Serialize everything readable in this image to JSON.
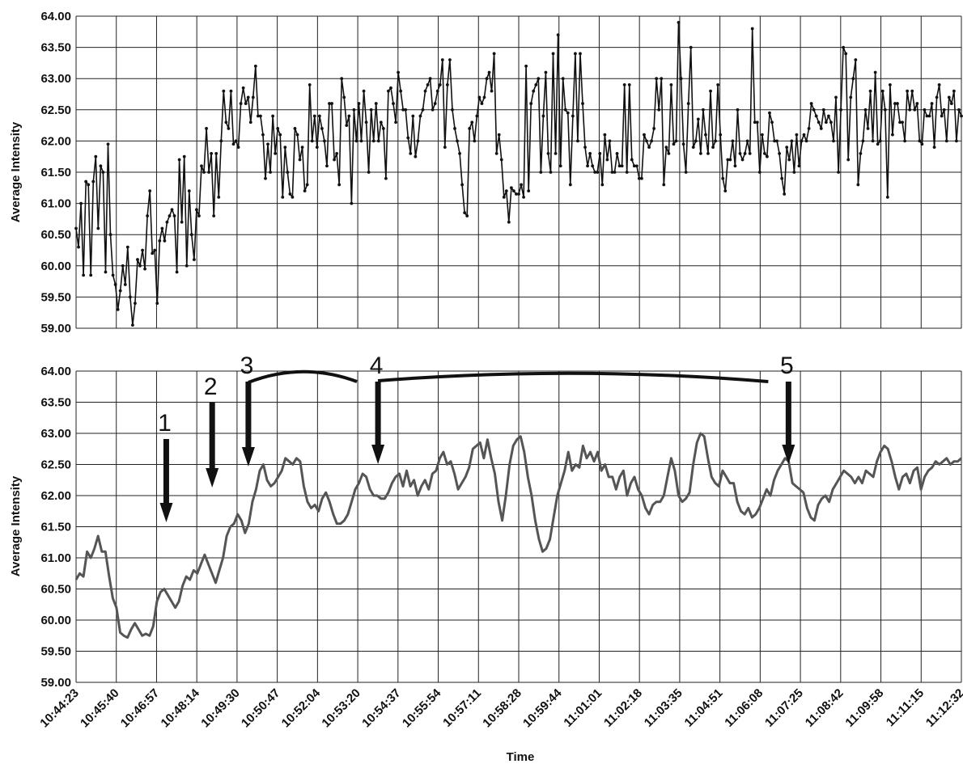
{
  "chart_data": [
    {
      "type": "line",
      "ylabel": "Average Intensity",
      "xlabel": "",
      "ylim": [
        59.0,
        64.0
      ],
      "y_ticks": [
        "59.00",
        "59.50",
        "60.00",
        "60.50",
        "61.00",
        "61.50",
        "62.00",
        "62.50",
        "63.00",
        "63.50",
        "64.00"
      ],
      "x_ticks": [
        "10:44:23",
        "10:45:40",
        "10:46:57",
        "10:48:14",
        "10:49:30",
        "10:50:47",
        "10:52:04",
        "10:53:20",
        "10:54:37",
        "10:55:54",
        "10:57:11",
        "10:58:28",
        "10:59:44",
        "11:01:01",
        "11:02:18",
        "11:03:35",
        "11:04:51",
        "11:06:08",
        "11:07:25",
        "11:08:42",
        "11:09:58",
        "11:11:15",
        "11:12:32"
      ],
      "x_tick_labels_shown": false,
      "grid": true,
      "series": [
        {
          "style": "black line with dot markers",
          "color": "#111111",
          "values": [
            60.6,
            60.3,
            61.0,
            59.85,
            61.35,
            61.3,
            59.85,
            61.35,
            61.75,
            60.6,
            61.6,
            61.5,
            59.9,
            61.95,
            60.5,
            59.85,
            59.7,
            59.3,
            59.6,
            60.0,
            59.7,
            60.3,
            59.5,
            59.05,
            59.4,
            60.1,
            60.0,
            60.25,
            59.95,
            60.8,
            61.2,
            60.2,
            60.25,
            59.4,
            60.4,
            60.6,
            60.4,
            60.7,
            60.8,
            60.9,
            60.8,
            59.9,
            61.7,
            60.7,
            61.75,
            60.0,
            61.2,
            60.5,
            60.1,
            60.9,
            60.8,
            61.6,
            61.5,
            62.2,
            61.5,
            61.8,
            60.8,
            61.8,
            61.1,
            62.0,
            62.8,
            62.3,
            62.2,
            62.8,
            61.95,
            62.0,
            61.9,
            62.6,
            62.85,
            62.6,
            62.7,
            62.3,
            62.7,
            63.2,
            62.4,
            62.4,
            62.1,
            61.4,
            61.95,
            61.5,
            62.4,
            61.8,
            62.2,
            62.1,
            61.1,
            61.9,
            61.5,
            61.15,
            61.1,
            62.2,
            62.1,
            61.7,
            61.9,
            61.2,
            61.3,
            62.9,
            62.0,
            62.4,
            61.9,
            62.4,
            62.2,
            62.0,
            61.6,
            62.6,
            62.6,
            61.7,
            61.8,
            61.3,
            63.0,
            62.7,
            62.25,
            62.4,
            61.0,
            62.5,
            62.0,
            62.6,
            62.0,
            62.8,
            62.3,
            61.5,
            62.5,
            62.0,
            62.6,
            62.0,
            62.3,
            62.2,
            61.4,
            62.8,
            62.85,
            62.6,
            62.3,
            63.1,
            62.8,
            62.5,
            62.5,
            62.05,
            61.8,
            62.4,
            61.75,
            62.0,
            62.4,
            62.5,
            62.8,
            62.9,
            63.0,
            62.5,
            62.6,
            62.8,
            62.9,
            63.3,
            61.9,
            62.9,
            63.3,
            62.5,
            62.2,
            62.0,
            61.8,
            61.3,
            60.85,
            60.8,
            62.2,
            62.3,
            62.0,
            62.4,
            62.7,
            62.6,
            62.7,
            63.0,
            63.1,
            62.8,
            63.4,
            61.8,
            62.1,
            61.7,
            61.1,
            61.2,
            60.7,
            61.25,
            61.2,
            61.15,
            61.15,
            61.3,
            61.1,
            63.2,
            61.2,
            62.6,
            62.8,
            62.9,
            63.0,
            61.5,
            62.4,
            63.1,
            61.8,
            61.5,
            63.4,
            61.8,
            63.7,
            61.6,
            63.0,
            62.5,
            62.45,
            61.3,
            62.4,
            63.4,
            62.0,
            63.4,
            62.6,
            61.9,
            61.6,
            61.8,
            61.6,
            61.5,
            61.5,
            61.8,
            61.3,
            62.1,
            61.7,
            62.0,
            61.5,
            61.5,
            61.8,
            61.6,
            61.6,
            62.9,
            61.5,
            62.9,
            61.7,
            61.6,
            61.6,
            61.4,
            61.4,
            62.1,
            62.0,
            61.9,
            62.0,
            62.2,
            63.0,
            62.5,
            63.0,
            61.3,
            61.9,
            61.8,
            62.9,
            61.95,
            62.0,
            63.9,
            63.0,
            61.95,
            61.5,
            62.6,
            63.5,
            61.9,
            62.0,
            62.35,
            61.8,
            62.5,
            62.1,
            61.8,
            62.8,
            61.9,
            62.0,
            62.9,
            62.1,
            61.4,
            61.2,
            61.7,
            61.7,
            62.0,
            61.6,
            62.5,
            61.8,
            61.7,
            61.8,
            62.0,
            61.8,
            63.8,
            62.3,
            62.3,
            61.5,
            62.1,
            61.8,
            61.75,
            62.45,
            62.3,
            62.0,
            62.0,
            61.8,
            61.4,
            61.15,
            61.9,
            61.7,
            62.0,
            61.5,
            62.1,
            61.6,
            62.0,
            62.1,
            62.0,
            62.2,
            62.6,
            62.5,
            62.4,
            62.3,
            62.2,
            62.5,
            62.3,
            62.4,
            62.3,
            62.0,
            62.7,
            61.5,
            62.5,
            63.5,
            63.4,
            61.7,
            62.7,
            63.0,
            63.3,
            61.3,
            61.8,
            62.0,
            62.5,
            62.2,
            62.8,
            62.0,
            63.1,
            61.95,
            62.0,
            62.8,
            62.5,
            61.1,
            62.9,
            62.1,
            62.6,
            62.6,
            62.3,
            62.3,
            62.0,
            62.8,
            62.5,
            62.8,
            62.5,
            62.6,
            62.0,
            61.95,
            62.5,
            62.4,
            62.4,
            62.6,
            61.9,
            62.7,
            62.9,
            62.4,
            62.5,
            62.0,
            62.7,
            62.6,
            62.8,
            62.0,
            62.5,
            62.4
          ]
        }
      ]
    },
    {
      "type": "line",
      "ylabel": "Average Intensity",
      "xlabel": "Time",
      "ylim": [
        59.0,
        64.0
      ],
      "y_ticks": [
        "59.00",
        "59.50",
        "60.00",
        "60.50",
        "61.00",
        "61.50",
        "62.00",
        "62.50",
        "63.00",
        "63.50",
        "64.00"
      ],
      "x_ticks": [
        "10:44:23",
        "10:45:40",
        "10:46:57",
        "10:48:14",
        "10:49:30",
        "10:50:47",
        "10:52:04",
        "10:53:20",
        "10:54:37",
        "10:55:54",
        "10:57:11",
        "10:58:28",
        "10:59:44",
        "11:01:01",
        "11:02:18",
        "11:03:35",
        "11:04:51",
        "11:06:08",
        "11:07:25",
        "11:08:42",
        "11:09:58",
        "11:11:15",
        "11:12:32"
      ],
      "x_tick_labels_shown": true,
      "grid": true,
      "series": [
        {
          "style": "gray smoothed line",
          "color": "#555555",
          "values": [
            60.65,
            60.75,
            60.7,
            61.1,
            61.0,
            61.15,
            61.35,
            61.1,
            61.1,
            60.7,
            60.35,
            60.2,
            59.8,
            59.75,
            59.72,
            59.85,
            59.95,
            59.85,
            59.75,
            59.78,
            59.75,
            59.9,
            60.3,
            60.45,
            60.5,
            60.4,
            60.3,
            60.2,
            60.3,
            60.55,
            60.7,
            60.65,
            60.8,
            60.75,
            60.9,
            61.05,
            60.9,
            60.75,
            60.6,
            60.8,
            61.0,
            61.35,
            61.5,
            61.55,
            61.7,
            61.6,
            61.4,
            61.55,
            61.9,
            62.1,
            62.4,
            62.5,
            62.25,
            62.15,
            62.2,
            62.3,
            62.4,
            62.6,
            62.55,
            62.5,
            62.6,
            62.55,
            62.15,
            61.9,
            61.8,
            61.85,
            61.75,
            61.95,
            62.05,
            61.9,
            61.7,
            61.55,
            61.55,
            61.6,
            61.7,
            61.9,
            62.1,
            62.2,
            62.35,
            62.3,
            62.1,
            62.0,
            62.0,
            61.95,
            61.95,
            62.05,
            62.2,
            62.3,
            62.35,
            62.15,
            62.4,
            62.15,
            62.25,
            62.0,
            62.15,
            62.25,
            62.1,
            62.35,
            62.4,
            62.6,
            62.7,
            62.5,
            62.55,
            62.35,
            62.1,
            62.2,
            62.3,
            62.45,
            62.75,
            62.8,
            62.85,
            62.6,
            62.9,
            62.6,
            62.35,
            61.9,
            61.6,
            62.0,
            62.5,
            62.8,
            62.9,
            62.95,
            62.7,
            62.3,
            62.0,
            61.6,
            61.3,
            61.1,
            61.15,
            61.3,
            61.65,
            62.0,
            62.2,
            62.4,
            62.7,
            62.4,
            62.5,
            62.45,
            62.8,
            62.6,
            62.7,
            62.55,
            62.7,
            62.4,
            62.5,
            62.3,
            62.3,
            62.1,
            62.3,
            62.4,
            62.0,
            62.2,
            62.3,
            62.1,
            62.0,
            61.8,
            61.7,
            61.85,
            61.9,
            61.9,
            62.0,
            62.3,
            62.6,
            62.4,
            62.0,
            61.9,
            61.95,
            62.05,
            62.5,
            62.85,
            63.0,
            62.95,
            62.6,
            62.3,
            62.2,
            62.15,
            62.4,
            62.3,
            62.2,
            62.2,
            61.9,
            61.75,
            61.7,
            61.8,
            61.65,
            61.7,
            61.8,
            61.95,
            62.1,
            62.0,
            62.25,
            62.4,
            62.5,
            62.6,
            62.55,
            62.2,
            62.15,
            62.1,
            62.05,
            61.8,
            61.65,
            61.6,
            61.85,
            61.95,
            62.0,
            61.9,
            62.1,
            62.2,
            62.3,
            62.4,
            62.35,
            62.3,
            62.2,
            62.3,
            62.2,
            62.4,
            62.35,
            62.3,
            62.55,
            62.7,
            62.8,
            62.75,
            62.55,
            62.3,
            62.1,
            62.3,
            62.35,
            62.2,
            62.4,
            62.45,
            62.1,
            62.3,
            62.4,
            62.45,
            62.55,
            62.5,
            62.55,
            62.6,
            62.5,
            62.55,
            62.55,
            62.6
          ]
        }
      ],
      "annotations": [
        {
          "label": "1",
          "x_time": "10:46:57"
        },
        {
          "label": "2",
          "x_time": "10:48:14"
        },
        {
          "label": "3",
          "x_time": "10:49:30"
        },
        {
          "label": "4",
          "x_time": "10:53:20"
        },
        {
          "label": "5",
          "x_time": "11:06:08"
        }
      ]
    }
  ]
}
